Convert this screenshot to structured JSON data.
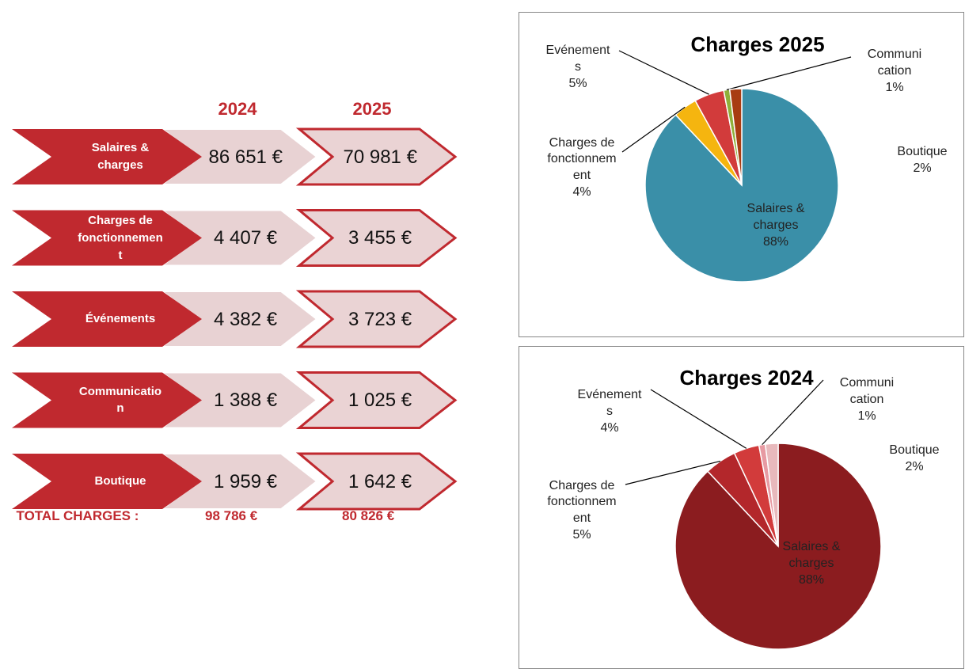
{
  "table": {
    "years": [
      "2024",
      "2025"
    ],
    "rows": [
      {
        "label": "Salaires & charges",
        "values": [
          "86 651 €",
          "70 981 €"
        ]
      },
      {
        "label": "Charges de fonctionnement",
        "values": [
          "4 407 €",
          "3 455 €"
        ]
      },
      {
        "label": "Événements",
        "values": [
          "4 382 €",
          "3 723 €"
        ]
      },
      {
        "label": "Communication",
        "values": [
          "1 388 €",
          "1 025 €"
        ]
      },
      {
        "label": "Boutique",
        "values": [
          "1 959 €",
          "1 642 €"
        ]
      }
    ],
    "total": {
      "label": "TOTAL CHARGES :",
      "values": [
        "98 786 €",
        "80 826 €"
      ]
    }
  },
  "chart_data": [
    {
      "type": "pie",
      "title": "Charges 2025",
      "categories": [
        "Salaires & charges",
        "Charges de fonctionnement",
        "Evénements",
        "Communication",
        "Boutique"
      ],
      "values": [
        88,
        4,
        5,
        1,
        2
      ],
      "value_labels": [
        "88%",
        "4%",
        "5%",
        "1%",
        "2%"
      ],
      "colors": [
        "#3a8fa8",
        "#f5b50f",
        "#d23b3b",
        "#8fb03a",
        "#a83c12"
      ]
    },
    {
      "type": "pie",
      "title": "Charges 2024",
      "categories": [
        "Salaires & charges",
        "Charges de fonctionnement",
        "Evénements",
        "Communication",
        "Boutique"
      ],
      "values": [
        88,
        5,
        4,
        1,
        2
      ],
      "value_labels": [
        "88%",
        "5%",
        "4%",
        "1%",
        "2%"
      ],
      "colors": [
        "#8b1c1f",
        "#b3272b",
        "#d23b3b",
        "#e79aa2",
        "#e8b9bc"
      ]
    }
  ]
}
